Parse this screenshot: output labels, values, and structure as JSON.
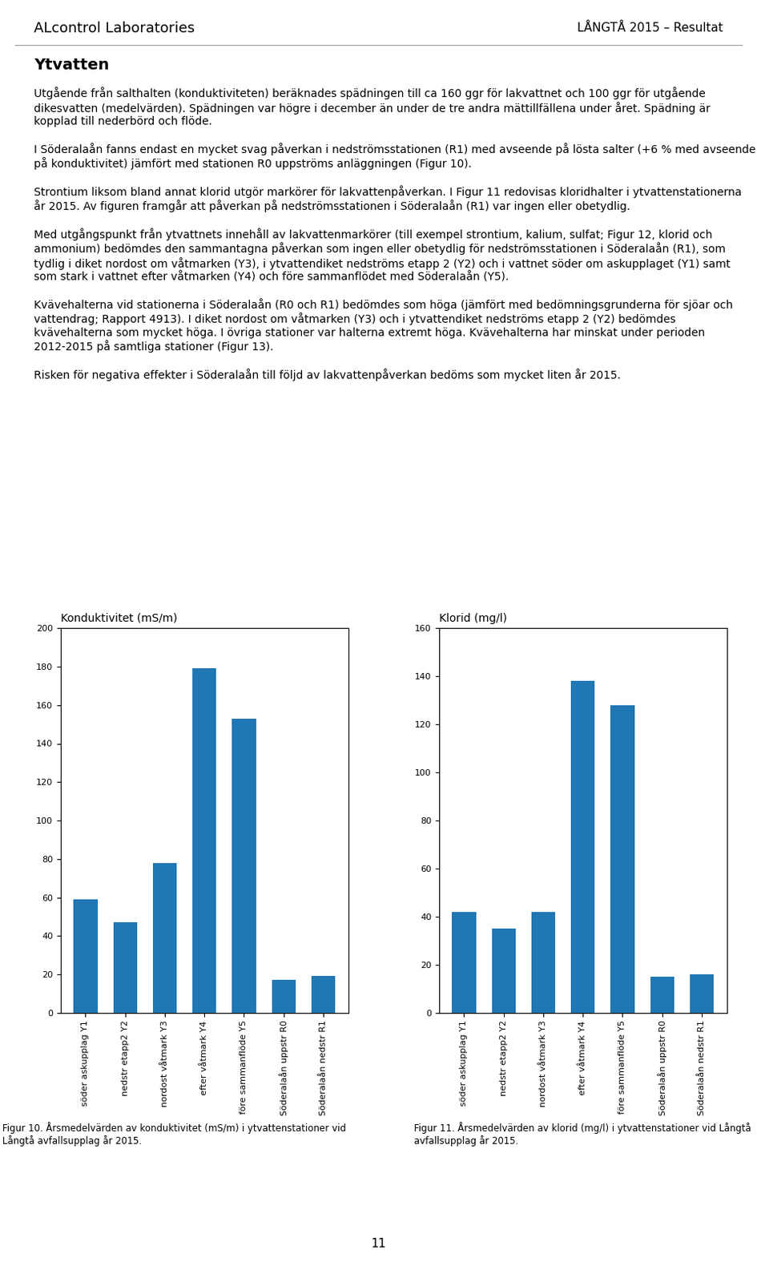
{
  "header": [
    "ALcontrol Laboratories",
    "LÅNGTÅ 2015 – Resultat"
  ],
  "title": "Ytvatten",
  "annotations": [
    "Utgående från salthalten (konduktiviteten) beräknades spädningen till ca 160 ggr för lakvattnet och 100 ggr för utgående dikesvatten (medelvärden). Spädningen var högre i december än under de tre andra mättillfällena under året. Spädning är kopplad till nederbörd och flöde.",
    "I Söderalaån fanns endast en mycket svag påverkan i nedströmsstationen (R1) med avseende på lösta salter (+6 % med avseende på konduktivitet) jämfört med stationen R0 uppströms anläggningen (Figur 10).",
    "Strontium liksom bland annat klorid utgör markörer för lakvattenpåverkan. I Figur 11 redovisas kloridhalter i ytvattenstationerna år 2015. Av figuren framgår att påverkan på nedströmsstationen i Söderalaån (R1) var ingen eller obetydlig.",
    "Med utgångspunkt från ytvattnets innehåll av lakvattenmarkörer (till exempel strontium, kalium, sulfat; Figur 12, klorid och ammonium) bedömdes den sammantagna påverkan som ingen eller obetydlig för nedströmsstationen i Söderalaån (R1), som tydlig i diket nordost om våtmarken (Y3), i ytvattendiket nedströms etapp 2 (Y2) och i vattnet söder om askupplaget (Y1) samt som stark i vattnet efter våtmarken (Y4) och före sammanflödet med Söderalaån (Y5).",
    "Kvävehalterna vid stationerna i Söderalaån (R0 och R1) bedömdes som höga (jämfört med bedömningsgrunderna för sjöar och vattendrag; Rapport 4913). I diket nordost om våtmarken (Y3) och i ytvattendiket nedströms etapp 2 (Y2) bedömdes kvävehalterna som mycket höga. I övriga stationer var halterna extremt höga. Kvävehalterna har minskat under perioden 2012-2015 på samtliga stationer (Figur 13).",
    "Risken för negativa effekter i Söderalaån till följd av lakvattenpåverkan bedöms som mycket liten år 2015."
  ],
  "footer": "11",
  "chart_data": [
    {
      "type": "bar",
      "title": "Konduktivitet (mS/m)",
      "categories": [
        "söder askupplag Y1",
        "nedstr etapp2 Y2",
        "nordost våtmark Y3",
        "efter våtmark Y4",
        "före sammanflöde Y5",
        "Söderalaån uppstr R0",
        "Söderalaån nedstr R1"
      ],
      "values": [
        59,
        47,
        78,
        179,
        153,
        17,
        19
      ],
      "ylim": [
        0,
        200
      ],
      "yticks": [
        0,
        20,
        40,
        60,
        80,
        100,
        120,
        140,
        160,
        180,
        200
      ],
      "annotations": [
        "Figur 10. Årsmedelvärden av konduktivitet (mS/m) i ytvattenstationer vid Långtå avfallsupplag år 2015."
      ]
    },
    {
      "type": "bar",
      "title": "Klorid (mg/l)",
      "categories": [
        "söder askupplag Y1",
        "nedstr etapp2 Y2",
        "nordost våtmark Y3",
        "efter våtmark Y4",
        "före sammanflöde Y5",
        "Söderalaån uppstr R0",
        "Söderalaån nedstr R1"
      ],
      "values": [
        42,
        35,
        42,
        138,
        128,
        15,
        16
      ],
      "ylim": [
        0,
        160
      ],
      "yticks": [
        0,
        20,
        40,
        60,
        80,
        100,
        120,
        140,
        160
      ],
      "annotations": [
        "Figur 11. Årsmedelvärden av klorid (mg/l) i ytvattenstationer vid Långtå avfallsupplag år 2015."
      ]
    }
  ]
}
